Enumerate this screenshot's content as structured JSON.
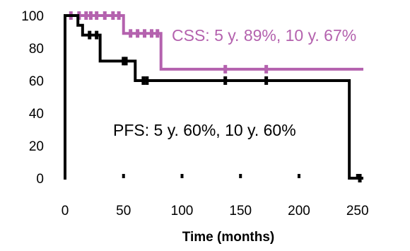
{
  "chart_data": {
    "type": "line",
    "step": true,
    "xlabel": "Time (months)",
    "ylabel": "",
    "xlim": [
      0,
      255
    ],
    "ylim": [
      0,
      100
    ],
    "xticks": [
      0,
      50,
      100,
      150,
      200,
      250
    ],
    "yticks": [
      0,
      20,
      40,
      60,
      80,
      100
    ],
    "grid": false,
    "series": [
      {
        "color": "#b462ae",
        "x": [
          0,
          50,
          50,
          82,
          82,
          255
        ],
        "y": [
          100,
          100,
          89,
          89,
          67,
          67
        ],
        "censored": [
          [
            5,
            100
          ],
          [
            12,
            100
          ],
          [
            18,
            100
          ],
          [
            22,
            100
          ],
          [
            27,
            100
          ],
          [
            34,
            100
          ],
          [
            41,
            100
          ],
          [
            46,
            100
          ],
          [
            56,
            89
          ],
          [
            62,
            89
          ],
          [
            68,
            89
          ],
          [
            74,
            89
          ],
          [
            79,
            89
          ],
          [
            137,
            67
          ],
          [
            172,
            67
          ]
        ]
      },
      {
        "color": "#000000",
        "x": [
          0,
          11,
          11,
          15,
          15,
          30,
          30,
          60,
          60,
          243,
          243,
          255
        ],
        "y": [
          100,
          100,
          94,
          94,
          88,
          88,
          72,
          72,
          60,
          60,
          0,
          0
        ],
        "censored": [
          [
            21,
            88
          ],
          [
            27,
            88
          ],
          [
            50,
            72
          ],
          [
            52,
            72
          ],
          [
            67,
            60
          ],
          [
            70,
            60
          ],
          [
            137,
            60
          ],
          [
            172,
            60
          ],
          [
            252,
            0
          ]
        ]
      }
    ],
    "annotations": [
      {
        "text": "CSS: 5 y. 89%, 10 y. 67%",
        "color": "#b462ae"
      },
      {
        "text": "PFS: 5 y. 60%, 10 y. 60%",
        "color": "#000000"
      }
    ]
  }
}
